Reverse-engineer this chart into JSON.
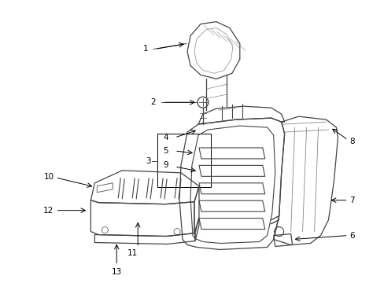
{
  "background_color": "#ffffff",
  "line_color": "#444444",
  "text_color": "#000000",
  "figure_width": 4.89,
  "figure_height": 3.6,
  "dpi": 100
}
